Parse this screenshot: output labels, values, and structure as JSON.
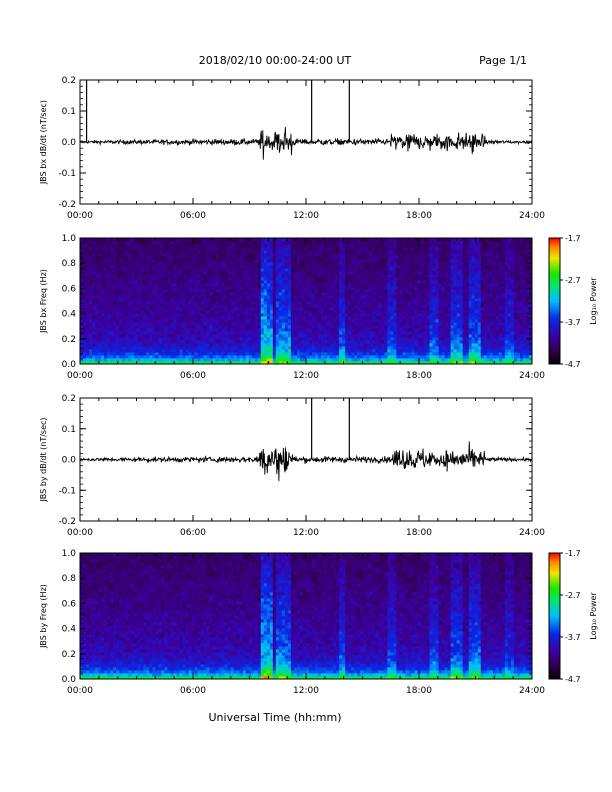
{
  "header": {
    "title": "2018/02/10   00:00-24:00 UT",
    "page": "Page 1/1"
  },
  "footer": {
    "xlabel": "Universal Time (hh:mm)"
  },
  "colorbar": {
    "label": "Log₁₀ Power",
    "ticks": [
      "-1.7",
      "-2.7",
      "-3.7",
      "-4.7"
    ],
    "range": [
      -4.7,
      -1.7
    ]
  },
  "chart_data": [
    {
      "type": "line",
      "ylabel": "JBS bx dB/dt (nT/sec)",
      "x_ticks": [
        "00:00",
        "06:00",
        "12:00",
        "18:00",
        "24:00"
      ],
      "xlim": [
        0,
        24
      ],
      "ylim": [
        -0.2,
        0.2
      ],
      "y_ticks": [
        "0.2",
        "0.1",
        "0.0",
        "-0.1",
        "-0.2"
      ],
      "baseline": 0.0,
      "spikes": [
        {
          "x": 0.35,
          "y": 0.2
        },
        {
          "x": 12.3,
          "y": 0.2
        },
        {
          "x": 14.3,
          "y": 0.2
        }
      ],
      "disturbance_intervals": [
        {
          "x": [
            9.5,
            11.3
          ],
          "amplitude": 0.06
        },
        {
          "x": [
            16.5,
            21.5
          ],
          "amplitude": 0.04
        }
      ]
    },
    {
      "type": "heatmap",
      "ylabel": "JBS bx Freq (Hz)",
      "x_ticks": [
        "00:00",
        "06:00",
        "12:00",
        "18:00",
        "24:00"
      ],
      "xlim": [
        0,
        24
      ],
      "ylim": [
        0.0,
        1.0
      ],
      "y_ticks": [
        "1.0",
        "0.8",
        "0.6",
        "0.4",
        "0.2",
        "0.0"
      ],
      "value": "Log10 Power",
      "vrange": [
        -4.7,
        -1.7
      ]
    },
    {
      "type": "line",
      "ylabel": "JBS by dB/dt (nT/sec)",
      "x_ticks": [
        "00:00",
        "06:00",
        "12:00",
        "18:00",
        "24:00"
      ],
      "xlim": [
        0,
        24
      ],
      "ylim": [
        -0.2,
        0.2
      ],
      "y_ticks": [
        "0.2",
        "0.1",
        "0.0",
        "-0.1",
        "-0.2"
      ],
      "baseline": 0.0,
      "spikes": [
        {
          "x": 12.3,
          "y": 0.2
        },
        {
          "x": 14.3,
          "y": 0.2
        }
      ],
      "disturbance_intervals": [
        {
          "x": [
            9.5,
            11.3
          ],
          "amplitude": 0.09
        },
        {
          "x": [
            16.5,
            21.5
          ],
          "amplitude": 0.05
        }
      ]
    },
    {
      "type": "heatmap",
      "ylabel": "JBS by Freq (Hz)",
      "x_ticks": [
        "00:00",
        "06:00",
        "12:00",
        "18:00",
        "24:00"
      ],
      "xlim": [
        0,
        24
      ],
      "ylim": [
        0.0,
        1.0
      ],
      "y_ticks": [
        "1.0",
        "0.8",
        "0.6",
        "0.4",
        "0.2",
        "0.0"
      ],
      "value": "Log10 Power",
      "vrange": [
        -4.7,
        -1.7
      ]
    }
  ]
}
